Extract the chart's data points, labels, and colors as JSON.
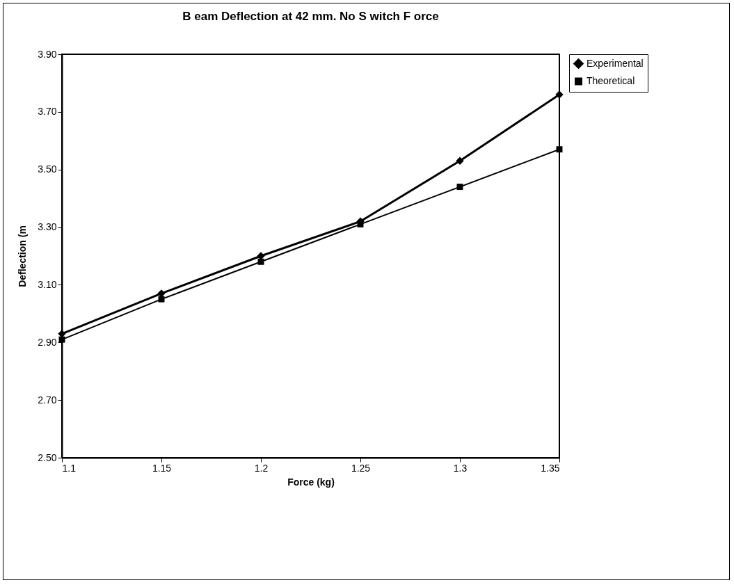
{
  "chart_data": {
    "type": "line",
    "title": "B eam Deflection at 42 mm. No S witch F orce",
    "xlabel": "Force (kg)",
    "ylabel": "Deflection (m",
    "x": [
      1.1,
      1.15,
      1.2,
      1.25,
      1.3,
      1.35
    ],
    "series": [
      {
        "name": "Experimental",
        "color": "#000000",
        "marker": "diamond",
        "values": [
          2.93,
          3.07,
          3.2,
          3.32,
          3.53,
          3.76
        ]
      },
      {
        "name": "Theoretical",
        "color": "#000000",
        "marker": "square",
        "values": [
          2.91,
          3.05,
          3.18,
          3.31,
          3.44,
          3.57
        ]
      }
    ],
    "xlim": [
      1.1,
      1.35
    ],
    "xticks": [
      1.1,
      1.15,
      1.2,
      1.25,
      1.3,
      1.35
    ],
    "ylim": [
      2.5,
      3.9
    ],
    "yticks": [
      {
        "value": 2.5,
        "label": "2.50"
      },
      {
        "value": 2.7,
        "label": "2.70"
      },
      {
        "value": 2.9,
        "label": "2.90"
      },
      {
        "value": 3.1,
        "label": "3.10"
      },
      {
        "value": 3.3,
        "label": "3.30"
      },
      {
        "value": 3.5,
        "label": "3.50"
      },
      {
        "value": 3.7,
        "label": "3.70"
      },
      {
        "value": 3.9,
        "label": "3.90"
      }
    ],
    "grid": false,
    "legend": "top right",
    "line_style": "solid"
  }
}
